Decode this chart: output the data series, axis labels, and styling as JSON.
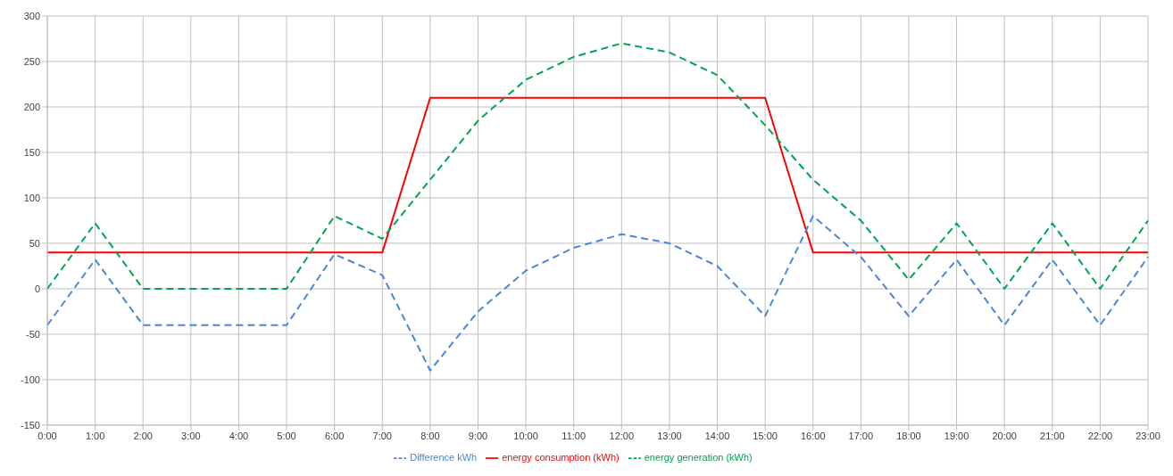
{
  "chart_data": {
    "type": "line",
    "categories": [
      "0:00",
      "1:00",
      "2:00",
      "3:00",
      "4:00",
      "5:00",
      "6:00",
      "7:00",
      "8:00",
      "9:00",
      "10:00",
      "11:00",
      "12:00",
      "13:00",
      "14:00",
      "15:00",
      "16:00",
      "17:00",
      "18:00",
      "19:00",
      "20:00",
      "21:00",
      "22:00",
      "23:00"
    ],
    "series": [
      {
        "name": "energy consumption (kWh)",
        "color": "#ff0000",
        "line_style": "solid",
        "values": [
          40,
          40,
          40,
          40,
          40,
          40,
          40,
          40,
          210,
          210,
          210,
          210,
          210,
          210,
          210,
          210,
          40,
          40,
          40,
          40,
          40,
          40,
          40,
          40
        ]
      },
      {
        "name": "energy generation (kWh)",
        "color": "#00a550",
        "line_style": "dashed",
        "values": [
          0,
          72,
          0,
          0,
          0,
          0,
          80,
          55,
          120,
          185,
          230,
          255,
          270,
          260,
          235,
          180,
          120,
          75,
          10,
          72,
          0,
          72,
          0,
          75
        ]
      },
      {
        "name": "Difference kWh",
        "color": "#4a86d8",
        "line_style": "dashed",
        "values": [
          -40,
          32,
          -40,
          -40,
          -40,
          -40,
          38,
          15,
          -90,
          -25,
          20,
          45,
          60,
          50,
          25,
          -30,
          80,
          35,
          -30,
          32,
          -40,
          32,
          -40,
          35
        ]
      }
    ],
    "ylim": [
      -150,
      300
    ],
    "yticks": [
      -150,
      -100,
      -50,
      0,
      50,
      100,
      150,
      200,
      250,
      300
    ],
    "grid": true,
    "legend": "bottom",
    "marker": "none"
  }
}
